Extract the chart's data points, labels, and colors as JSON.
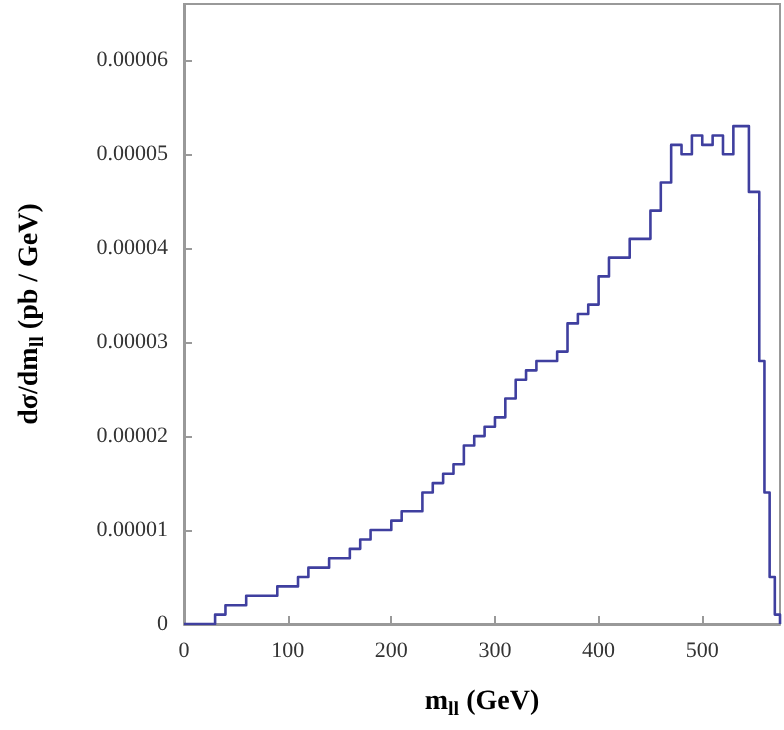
{
  "chart_data": {
    "type": "histogram",
    "xlabel": "m$_{ll}$ (GeV)",
    "ylabel": "dσ/dm$_{ll}$ (pb / GeV)",
    "color": "#3f3f9f",
    "bins": [
      0,
      10,
      20,
      30,
      40,
      50,
      60,
      70,
      80,
      90,
      100,
      110,
      120,
      130,
      140,
      150,
      160,
      170,
      180,
      190,
      200,
      210,
      220,
      230,
      240,
      250,
      260,
      270,
      280,
      290,
      300,
      310,
      320,
      330,
      340,
      350,
      360,
      370,
      380,
      390,
      400,
      410,
      420,
      430,
      440,
      450,
      460,
      470,
      480,
      490,
      500,
      510,
      520,
      530,
      540,
      545,
      550,
      555,
      560,
      565,
      570,
      575
    ],
    "values": [
      0,
      0,
      0,
      1e-06,
      2e-06,
      2e-06,
      3e-06,
      3e-06,
      3e-06,
      4e-06,
      4e-06,
      5e-06,
      6e-06,
      6e-06,
      7e-06,
      7e-06,
      8e-06,
      9e-06,
      1e-05,
      1e-05,
      1.1e-05,
      1.2e-05,
      1.2e-05,
      1.4e-05,
      1.5e-05,
      1.6e-05,
      1.7e-05,
      1.9e-05,
      2e-05,
      2.1e-05,
      2.2e-05,
      2.4e-05,
      2.6e-05,
      2.7e-05,
      2.8e-05,
      2.8e-05,
      2.9e-05,
      3.2e-05,
      3.3e-05,
      3.4e-05,
      3.7e-05,
      3.9e-05,
      3.9e-05,
      4.1e-05,
      4.1e-05,
      4.4e-05,
      4.7e-05,
      5.1e-05,
      5e-05,
      5.2e-05,
      5.1e-05,
      5.2e-05,
      5e-05,
      5.3e-05,
      5.3e-05,
      4.6e-05,
      4.6e-05,
      2.8e-05,
      1.4e-05,
      5e-06,
      1e-06
    ],
    "xlim": [
      0,
      575
    ],
    "ylim": [
      0,
      6.6e-05
    ],
    "xticks": [
      0,
      100,
      200,
      300,
      400,
      500
    ],
    "yticks": [
      0,
      {
        "value": 1e-05,
        "label": "0.00001"
      },
      {
        "value": 2e-05,
        "label": "0.00002"
      },
      {
        "value": 3e-05,
        "label": "0.00003"
      },
      {
        "value": 4e-05,
        "label": "0.00004"
      },
      {
        "value": 5e-05,
        "label": "0.00005"
      },
      {
        "value": 6e-05,
        "label": "0.00006"
      }
    ],
    "grid": false
  }
}
